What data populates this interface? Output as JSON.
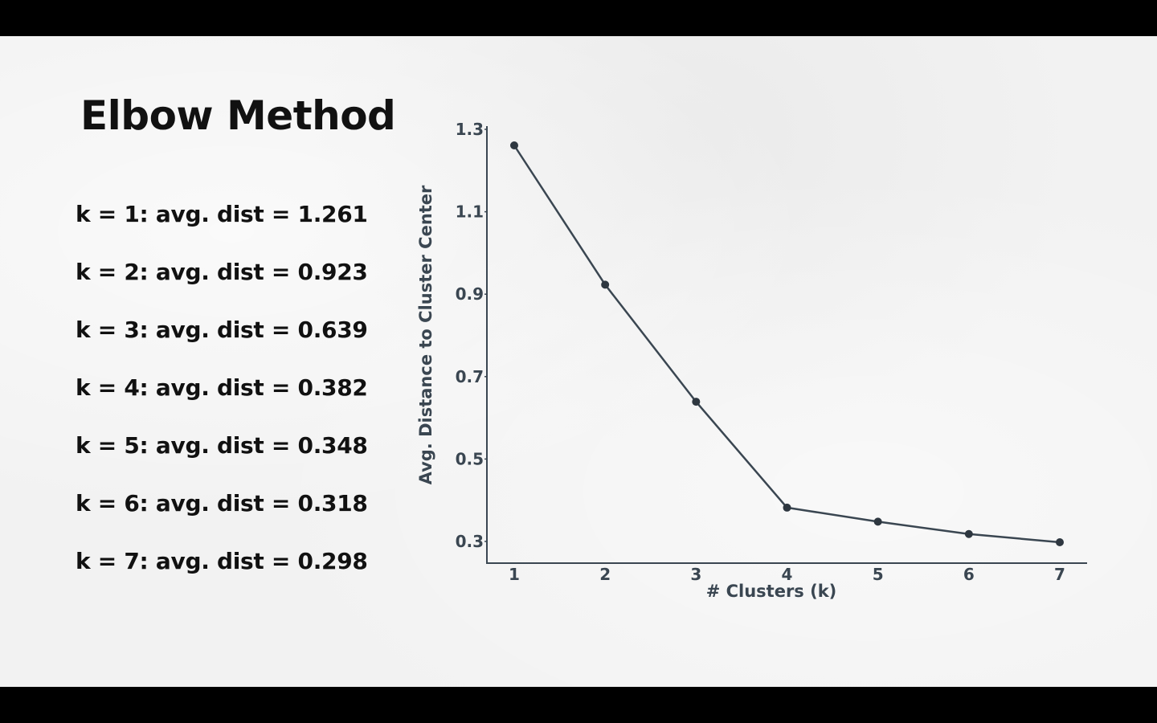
{
  "slide": {
    "title": "Elbow Method",
    "results": [
      "k = 1: avg. dist = 1.261",
      "k = 2: avg. dist = 0.923",
      "k = 3: avg. dist = 0.639",
      "k = 4: avg. dist = 0.382",
      "k = 5: avg. dist = 0.348",
      "k = 6: avg. dist = 0.318",
      "k = 7: avg. dist = 0.298"
    ]
  },
  "chart_data": {
    "type": "line",
    "x": [
      1,
      2,
      3,
      4,
      5,
      6,
      7
    ],
    "y": [
      1.261,
      0.923,
      0.639,
      0.382,
      0.348,
      0.318,
      0.298
    ],
    "xlabel": "# Clusters (k)",
    "ylabel": "Avg. Distance to Cluster Center",
    "xticks": [
      "1",
      "2",
      "3",
      "4",
      "5",
      "6",
      "7"
    ],
    "yticks": [
      "0.3",
      "0.5",
      "0.7",
      "0.9",
      "1.1",
      "1.3"
    ],
    "ytick_values": [
      0.3,
      0.5,
      0.7,
      0.9,
      1.1,
      1.3
    ],
    "xlim": [
      1,
      7
    ],
    "ylim": [
      0.3,
      1.3
    ],
    "grid": false,
    "line_color": "#3a4651",
    "marker_color": "#2e3740"
  }
}
